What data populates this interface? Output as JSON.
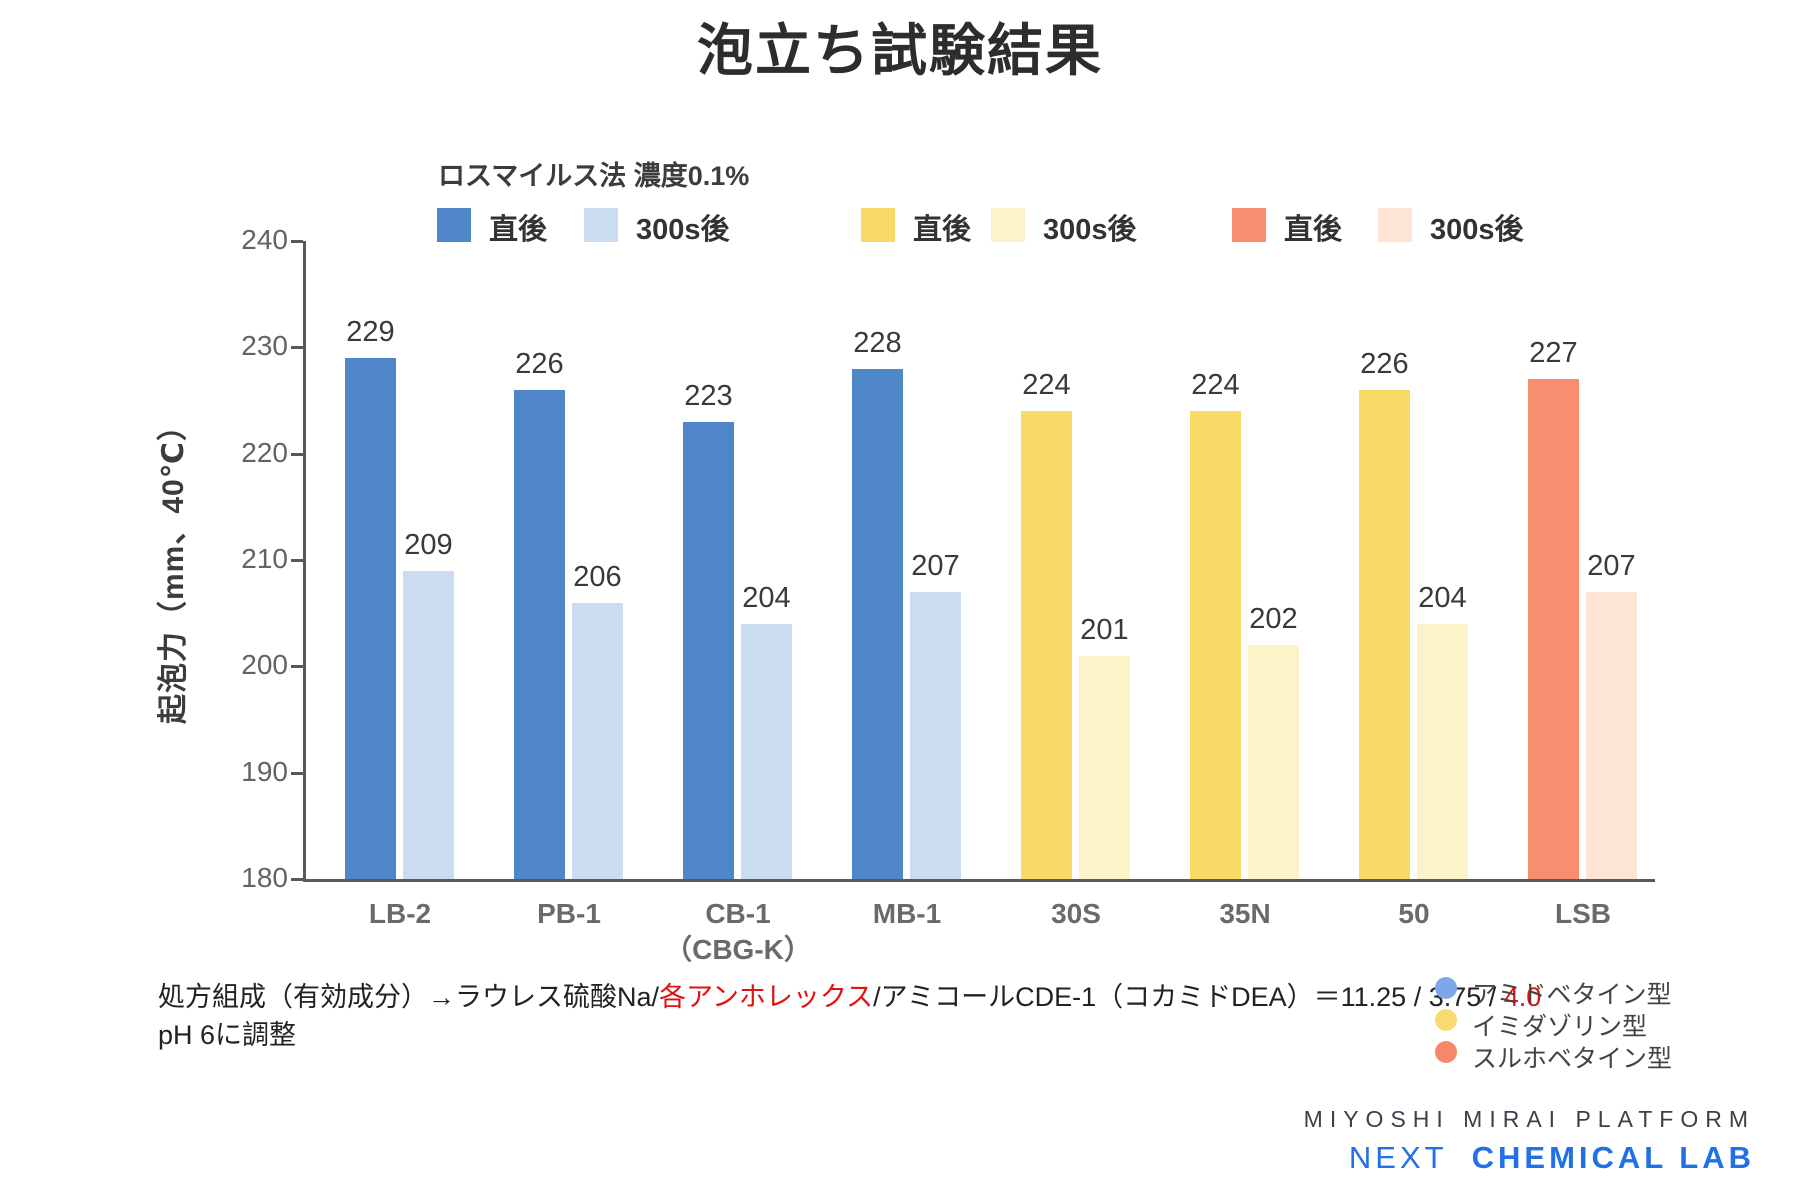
{
  "title": "泡立ち試験結果",
  "chart_data": {
    "type": "bar",
    "title": "泡立ち試験結果",
    "subtitle": "ロスマイルス法 濃度0.1%",
    "ylabel": "起泡力（mm、40℃）",
    "ylim": [
      180,
      240
    ],
    "yticks": [
      240,
      230,
      220,
      210,
      200,
      190,
      180
    ],
    "grid": false,
    "legend_position": "top",
    "categories": [
      "LB-2",
      "PB-1",
      "CB-1\n（CBG-K）",
      "MB-1",
      "30S",
      "35N",
      "50",
      "LSB"
    ],
    "group_color_keys": [
      "blue",
      "blue",
      "blue",
      "blue",
      "yellow",
      "yellow",
      "yellow",
      "salmon"
    ],
    "series": [
      {
        "name": "直後",
        "values": [
          229,
          226,
          223,
          228,
          224,
          224,
          226,
          227
        ]
      },
      {
        "name": "300s後",
        "values": [
          209,
          206,
          204,
          207,
          201,
          202,
          204,
          207
        ]
      }
    ],
    "palette": {
      "blue": {
        "immediate": "#4E86C8",
        "after": "#CBDCF1"
      },
      "yellow": {
        "immediate": "#F8DA69",
        "after": "#FDF3CB"
      },
      "salmon": {
        "immediate": "#F88E70",
        "after": "#FCE5D4"
      }
    },
    "legend": [
      {
        "label": "直後",
        "color": "#4E86C8"
      },
      {
        "label": "300s後",
        "color": "#CBDCF1"
      },
      {
        "label": "直後",
        "color": "#F8DA69"
      },
      {
        "label": "300s後",
        "color": "#FDF3CB"
      },
      {
        "label": "直後",
        "color": "#F88E70"
      },
      {
        "label": "300s後",
        "color": "#FCE5D4"
      }
    ],
    "axis_color": "#595959"
  },
  "footnote": {
    "line1_parts": [
      {
        "text": "処方組成（有効成分）→ラウレス硫酸Na/",
        "color": "#222222"
      },
      {
        "text": "各アンホレックス",
        "color": "#DF1111"
      },
      {
        "text": "/アミコールCDE-1（コカミドDEA）＝11.25 / 3.75 / ",
        "color": "#222222"
      },
      {
        "text": "4.0",
        "color": "#DF1111"
      }
    ],
    "line2": "pH 6に調整"
  },
  "type_legend": [
    {
      "label": "アミドベタイン型",
      "color": "#7DA7EA"
    },
    {
      "label": "イミダゾリン型",
      "color": "#F8DB6E"
    },
    {
      "label": "スルホベタイン型",
      "color": "#F8866B"
    }
  ],
  "logo": {
    "line1": "MIYOSHI MIRAI PLATFORM",
    "line2_light": "NEXT",
    "line2_bold": "CHEMICAL LAB",
    "accent_color": "#2170E8"
  }
}
